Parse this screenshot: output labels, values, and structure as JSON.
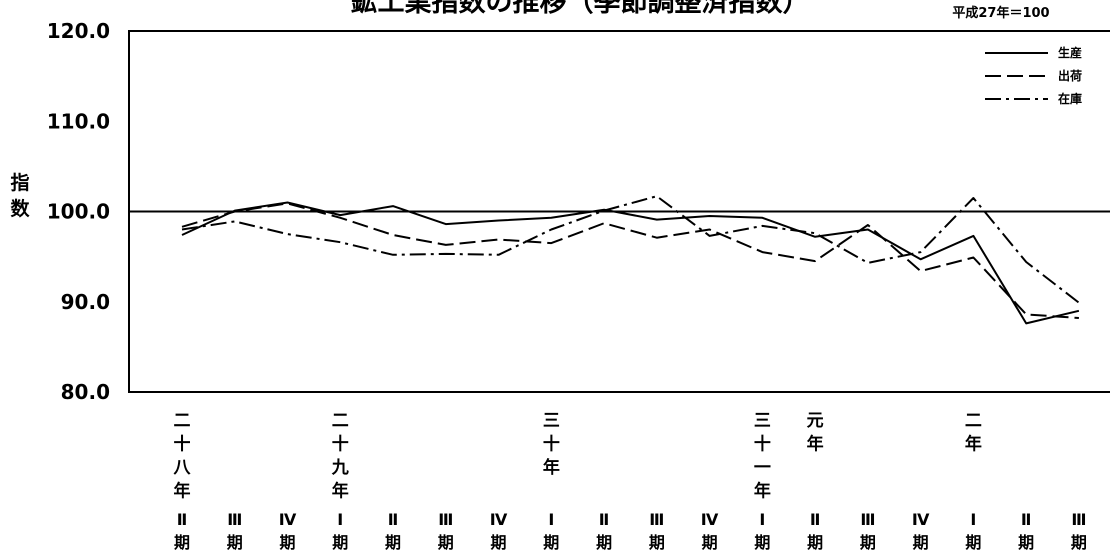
{
  "chart_data": {
    "type": "line",
    "title": "鉱工業指数の推移（季節調整済指数）",
    "base_note": "平成27年＝100",
    "ylabel": [
      "指",
      "数"
    ],
    "ylim": [
      80,
      120
    ],
    "yticks": [
      "120.0",
      "110.0",
      "100.0",
      "90.0",
      "80.0"
    ],
    "reference_line": 100,
    "categories": [
      {
        "era": [
          "二",
          "十",
          "八",
          "年"
        ],
        "quarter": [
          "Ⅱ",
          "期"
        ]
      },
      {
        "era": [],
        "quarter": [
          "Ⅲ",
          "期"
        ]
      },
      {
        "era": [],
        "quarter": [
          "Ⅳ",
          "期"
        ]
      },
      {
        "era": [
          "二",
          "十",
          "九",
          "年"
        ],
        "quarter": [
          "Ⅰ",
          "期"
        ]
      },
      {
        "era": [],
        "quarter": [
          "Ⅱ",
          "期"
        ]
      },
      {
        "era": [],
        "quarter": [
          "Ⅲ",
          "期"
        ]
      },
      {
        "era": [],
        "quarter": [
          "Ⅳ",
          "期"
        ]
      },
      {
        "era": [
          "三",
          "十",
          "年"
        ],
        "quarter": [
          "Ⅰ",
          "期"
        ]
      },
      {
        "era": [],
        "quarter": [
          "Ⅱ",
          "期"
        ]
      },
      {
        "era": [],
        "quarter": [
          "Ⅲ",
          "期"
        ]
      },
      {
        "era": [],
        "quarter": [
          "Ⅳ",
          "期"
        ]
      },
      {
        "era": [
          "三",
          "十",
          "一",
          "年"
        ],
        "quarter": [
          "Ⅰ",
          "期"
        ]
      },
      {
        "era": [
          "元",
          "年"
        ],
        "quarter": [
          "Ⅱ",
          "期"
        ]
      },
      {
        "era": [],
        "quarter": [
          "Ⅲ",
          "期"
        ]
      },
      {
        "era": [],
        "quarter": [
          "Ⅳ",
          "期"
        ]
      },
      {
        "era": [
          "二",
          "年"
        ],
        "quarter": [
          "Ⅰ",
          "期"
        ]
      },
      {
        "era": [],
        "quarter": [
          "Ⅱ",
          "期"
        ]
      },
      {
        "era": [],
        "quarter": [
          "Ⅲ",
          "期"
        ]
      }
    ],
    "series": [
      {
        "name": "生産",
        "style": "solid",
        "values": [
          97.4,
          100.1,
          101.0,
          99.6,
          100.6,
          98.6,
          99.0,
          99.3,
          100.2,
          99.1,
          99.5,
          99.3,
          97.2,
          98.0,
          94.7,
          97.3,
          87.6,
          89.0
        ]
      },
      {
        "name": "出荷",
        "style": "dashed",
        "values": [
          98.3,
          100.0,
          100.9,
          99.3,
          97.4,
          96.3,
          96.9,
          96.5,
          98.7,
          97.1,
          98.0,
          95.5,
          94.5,
          98.5,
          93.4,
          94.9,
          88.6,
          88.2
        ]
      },
      {
        "name": "在庫",
        "style": "dashdot",
        "values": [
          98.0,
          98.9,
          97.5,
          96.6,
          95.2,
          95.3,
          95.2,
          98.0,
          100.1,
          101.7,
          97.3,
          98.4,
          97.6,
          94.3,
          95.5,
          101.5,
          94.4,
          89.9
        ]
      }
    ],
    "legend_position": "top-right",
    "grid": false
  }
}
